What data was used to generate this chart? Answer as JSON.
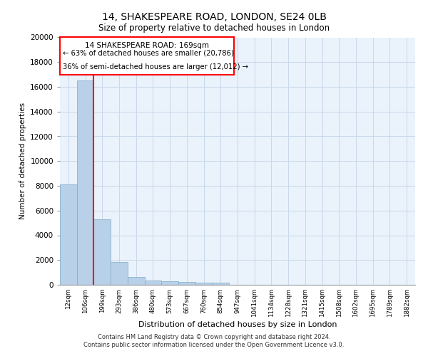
{
  "title1": "14, SHAKESPEARE ROAD, LONDON, SE24 0LB",
  "title2": "Size of property relative to detached houses in London",
  "xlabel": "Distribution of detached houses by size in London",
  "ylabel": "Number of detached properties",
  "bar_color": "#b8d0e8",
  "bar_edge_color": "#7aaac8",
  "categories": [
    "12sqm",
    "106sqm",
    "199sqm",
    "293sqm",
    "386sqm",
    "480sqm",
    "573sqm",
    "667sqm",
    "760sqm",
    "854sqm",
    "947sqm",
    "1041sqm",
    "1134sqm",
    "1228sqm",
    "1321sqm",
    "1415sqm",
    "1508sqm",
    "1602sqm",
    "1695sqm",
    "1789sqm",
    "1882sqm"
  ],
  "values": [
    8100,
    16500,
    5300,
    1850,
    650,
    350,
    270,
    220,
    190,
    170,
    0,
    0,
    0,
    0,
    0,
    0,
    0,
    0,
    0,
    0,
    0
  ],
  "ylim": [
    0,
    20000
  ],
  "yticks": [
    0,
    2000,
    4000,
    6000,
    8000,
    10000,
    12000,
    14000,
    16000,
    18000,
    20000
  ],
  "annotation_title": "14 SHAKESPEARE ROAD: 169sqm",
  "annotation_line1": "← 63% of detached houses are smaller (20,786)",
  "annotation_line2": "36% of semi-detached houses are larger (12,012) →",
  "footer1": "Contains HM Land Registry data © Crown copyright and database right 2024.",
  "footer2": "Contains public sector information licensed under the Open Government Licence v3.0.",
  "grid_color": "#c8d8ea",
  "bg_color": "#eaf2fb"
}
